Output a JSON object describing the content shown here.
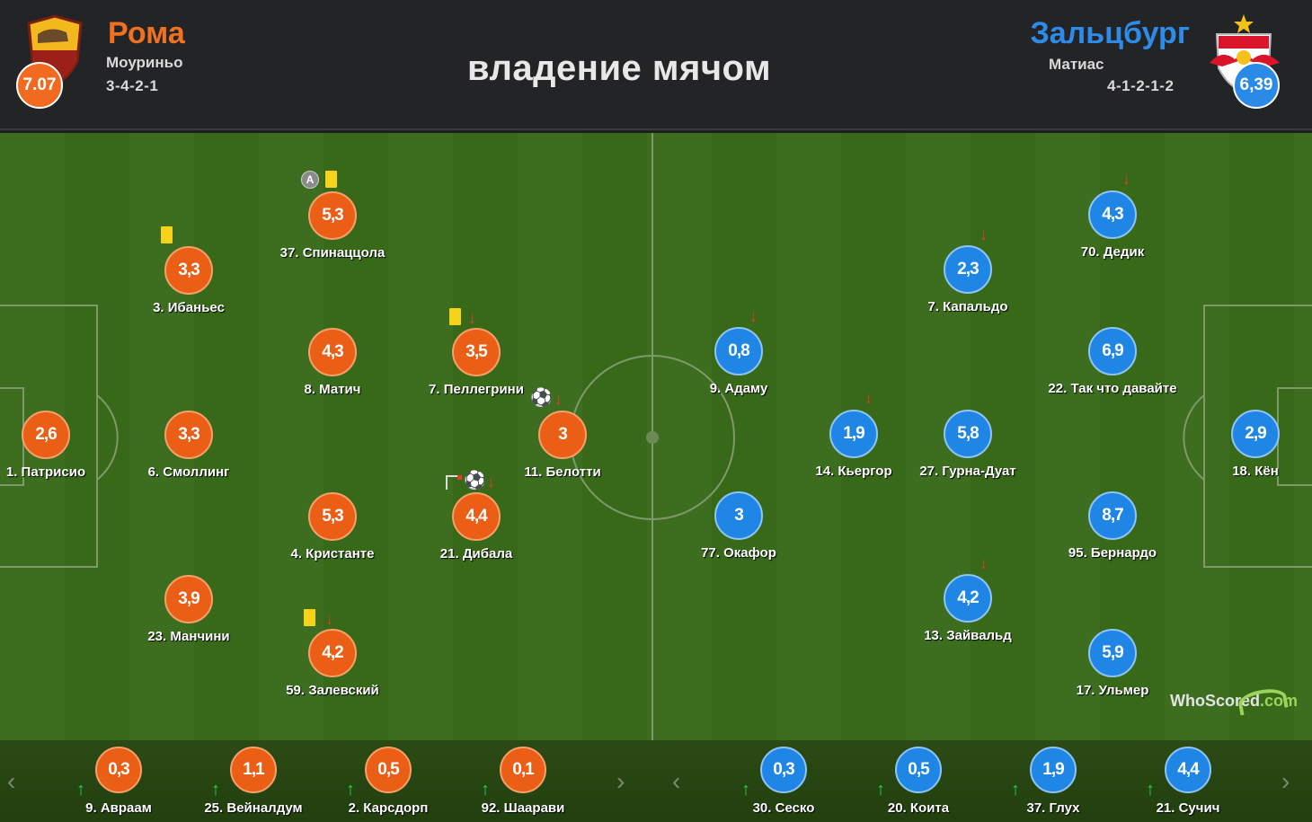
{
  "header": {
    "title": "владение мячом",
    "home": {
      "name": "Рома",
      "coach": "Моуриньо",
      "formation": "3-4-2-1",
      "rating": "7.07",
      "color": "#f07120"
    },
    "away": {
      "name": "Зальцбург",
      "coach": "Матиас",
      "formation": "4-1-2-1-2",
      "rating": "6,39",
      "color": "#2e8be8"
    }
  },
  "home_players": [
    {
      "rating": "2,6",
      "name": "1. Патрисио"
    },
    {
      "rating": "3,3",
      "name": "3. Ибаньес"
    },
    {
      "rating": "3,3",
      "name": "6. Смоллинг"
    },
    {
      "rating": "3,9",
      "name": "23. Манчини"
    },
    {
      "rating": "5,3",
      "name": "37. Спинаццола"
    },
    {
      "rating": "4,3",
      "name": "8. Матич"
    },
    {
      "rating": "5,3",
      "name": "4. Кристанте"
    },
    {
      "rating": "4,2",
      "name": "59. Залевский"
    },
    {
      "rating": "3,5",
      "name": "7. Пеллегрини"
    },
    {
      "rating": "4,4",
      "name": "21. Дибала"
    },
    {
      "rating": "3",
      "name": "11. Белотти"
    }
  ],
  "away_players": [
    {
      "rating": "2,9",
      "name": "18. Кён"
    },
    {
      "rating": "4,3",
      "name": "70. Дедик"
    },
    {
      "rating": "6,9",
      "name": "22. Так что давайте"
    },
    {
      "rating": "8,7",
      "name": "95. Бернардо"
    },
    {
      "rating": "5,9",
      "name": "17. Ульмер"
    },
    {
      "rating": "2,3",
      "name": "7. Капальдо"
    },
    {
      "rating": "5,8",
      "name": "27. Гурна-Дуат"
    },
    {
      "rating": "4,2",
      "name": "13. Зайвальд"
    },
    {
      "rating": "1,9",
      "name": "14. Кьергор"
    },
    {
      "rating": "0,8",
      "name": "9. Адаму"
    },
    {
      "rating": "3",
      "name": "77. Окафор"
    }
  ],
  "home_subs": [
    {
      "rating": "0,3",
      "name": "9. Авраам"
    },
    {
      "rating": "1,1",
      "name": "25. Вейналдум"
    },
    {
      "rating": "0,5",
      "name": "2. Карсдорп"
    },
    {
      "rating": "0,1",
      "name": "92. Шаарави"
    }
  ],
  "away_subs": [
    {
      "rating": "0,3",
      "name": "30. Сеско"
    },
    {
      "rating": "0,5",
      "name": "20. Коита"
    },
    {
      "rating": "1,9",
      "name": "37. Глух"
    },
    {
      "rating": "4,4",
      "name": "21. Сучич"
    }
  ],
  "icons": {
    "captain_label": "A",
    "logo_text_1": "WhoScored",
    "logo_text_2": ".com"
  }
}
